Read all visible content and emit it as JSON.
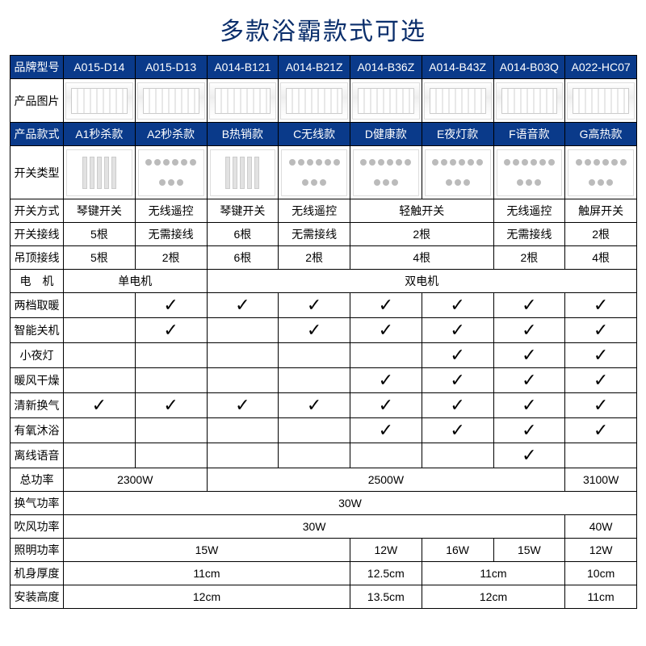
{
  "title": "多款浴霸款式可选",
  "colors": {
    "header_bg": "#0a3a8a",
    "header_fg": "#ffffff",
    "title_color": "#0a2e6b",
    "border": "#000000"
  },
  "labels": {
    "model": "品牌型号",
    "photo": "产品图片",
    "style": "产品款式",
    "switch_type": "开关类型",
    "switch_mode": "开关方式",
    "switch_wires": "开关接线",
    "ceiling_wires": "吊顶接线",
    "motor": "电　机",
    "two_heat": "两档取暖",
    "smart_off": "智能关机",
    "night_light": "小夜灯",
    "warm_dry": "暖风干燥",
    "fresh_air": "清新换气",
    "oxy_bath": "有氧沐浴",
    "offline_voice": "离线语音",
    "total_power": "总功率",
    "vent_power": "换气功率",
    "blow_power": "吹风功率",
    "light_power": "照明功率",
    "thickness": "机身厚度",
    "install_h": "安装高度"
  },
  "models": [
    "A015-D14",
    "A015-D13",
    "A014-B121",
    "A014-B21Z",
    "A014-B36Z",
    "A014-B43Z",
    "A014-B03Q",
    "A022-HC07"
  ],
  "styles": [
    "A1秒杀款",
    "A2秒杀款",
    "B热销款",
    "C无线款",
    "D健康款",
    "E夜灯款",
    "F语音款",
    "G高热款"
  ],
  "switch_mode": {
    "groups": [
      {
        "span": 1,
        "val": "琴键开关"
      },
      {
        "span": 1,
        "val": "无线遥控"
      },
      {
        "span": 1,
        "val": "琴键开关"
      },
      {
        "span": 1,
        "val": "无线遥控"
      },
      {
        "span": 2,
        "val": "轻触开关"
      },
      {
        "span": 1,
        "val": "无线遥控"
      },
      {
        "span": 1,
        "val": "触屏开关"
      }
    ]
  },
  "switch_wires": {
    "groups": [
      {
        "span": 1,
        "val": "5根"
      },
      {
        "span": 1,
        "val": "无需接线"
      },
      {
        "span": 1,
        "val": "6根"
      },
      {
        "span": 1,
        "val": "无需接线"
      },
      {
        "span": 2,
        "val": "2根"
      },
      {
        "span": 1,
        "val": "无需接线"
      },
      {
        "span": 1,
        "val": "2根"
      }
    ]
  },
  "ceiling_wires": {
    "groups": [
      {
        "span": 1,
        "val": "5根"
      },
      {
        "span": 1,
        "val": "2根"
      },
      {
        "span": 1,
        "val": "6根"
      },
      {
        "span": 1,
        "val": "2根"
      },
      {
        "span": 2,
        "val": "4根"
      },
      {
        "span": 1,
        "val": "2根"
      },
      {
        "span": 1,
        "val": "4根"
      }
    ]
  },
  "motor": {
    "groups": [
      {
        "span": 2,
        "val": "单电机"
      },
      {
        "span": 6,
        "val": "双电机"
      }
    ]
  },
  "features": {
    "two_heat": [
      false,
      true,
      true,
      true,
      true,
      true,
      true,
      true
    ],
    "smart_off": [
      false,
      true,
      false,
      true,
      true,
      true,
      true,
      true
    ],
    "night_light": [
      false,
      false,
      false,
      false,
      false,
      true,
      true,
      true
    ],
    "warm_dry": [
      false,
      false,
      false,
      false,
      true,
      true,
      true,
      true
    ],
    "fresh_air": [
      true,
      true,
      true,
      true,
      true,
      true,
      true,
      true
    ],
    "oxy_bath": [
      false,
      false,
      false,
      false,
      true,
      true,
      true,
      true
    ],
    "offline_voice": [
      false,
      false,
      false,
      false,
      false,
      false,
      true,
      false
    ]
  },
  "total_power": {
    "groups": [
      {
        "span": 2,
        "val": "2300W"
      },
      {
        "span": 5,
        "val": "2500W"
      },
      {
        "span": 1,
        "val": "3100W"
      }
    ]
  },
  "vent_power": {
    "groups": [
      {
        "span": 8,
        "val": "30W"
      }
    ]
  },
  "blow_power": {
    "groups": [
      {
        "span": 7,
        "val": "30W"
      },
      {
        "span": 1,
        "val": "40W"
      }
    ]
  },
  "light_power": {
    "groups": [
      {
        "span": 4,
        "val": "15W"
      },
      {
        "span": 1,
        "val": "12W"
      },
      {
        "span": 1,
        "val": "16W"
      },
      {
        "span": 1,
        "val": "15W"
      },
      {
        "span": 1,
        "val": "12W"
      }
    ]
  },
  "thickness": {
    "groups": [
      {
        "span": 4,
        "val": "11cm"
      },
      {
        "span": 1,
        "val": "12.5cm"
      },
      {
        "span": 2,
        "val": "11cm"
      },
      {
        "span": 1,
        "val": "10cm"
      }
    ]
  },
  "install_h": {
    "groups": [
      {
        "span": 4,
        "val": "12cm"
      },
      {
        "span": 1,
        "val": "13.5cm"
      },
      {
        "span": 2,
        "val": "12cm"
      },
      {
        "span": 1,
        "val": "11cm"
      }
    ]
  },
  "checkmark": "✓",
  "switch_styles": [
    "bars",
    "dots",
    "bars",
    "dots",
    "dots",
    "dots",
    "dots",
    "dots"
  ]
}
